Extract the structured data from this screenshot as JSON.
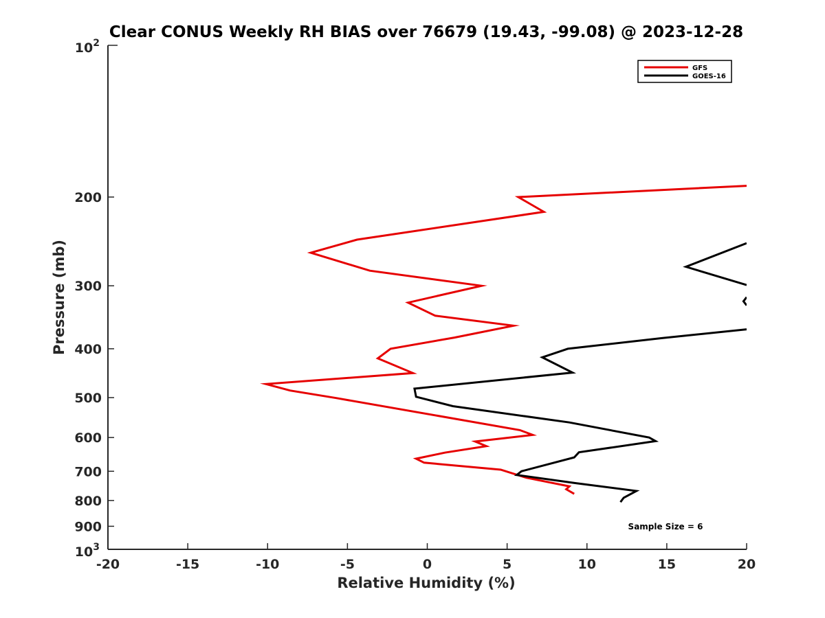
{
  "chart_data": {
    "type": "line",
    "title": "Clear CONUS Weekly RH BIAS over 76679 (19.43, -99.08) @ 2023-12-28",
    "xlabel": "Relative Humidity (%)",
    "ylabel": "Pressure (mb)",
    "xlim": [
      -20,
      20
    ],
    "ylim": [
      100,
      1000
    ],
    "y_scale": "log",
    "y_reversed": true,
    "grid": false,
    "legend_position": "top-right",
    "x_ticks": [
      -20,
      -15,
      -10,
      -5,
      0,
      5,
      10,
      15,
      20
    ],
    "x_tick_labels": [
      "-20",
      "-15",
      "-10",
      "-5",
      "0",
      "5",
      "10",
      "15",
      "20"
    ],
    "y_ticks": [
      200,
      300,
      400,
      500,
      600,
      700,
      800,
      900
    ],
    "y_tick_labels": [
      "200",
      "300",
      "400",
      "500",
      "600",
      "700",
      "800",
      "900"
    ],
    "y_decade_labels": [
      {
        "value": 100,
        "base": "10",
        "exp": "2"
      },
      {
        "value": 1000,
        "base": "10",
        "exp": "3"
      }
    ],
    "series": [
      {
        "name": "GFS",
        "color": "#e60000",
        "x": [
          20,
          5.7,
          7.3,
          -4.4,
          -7.3,
          -3.6,
          3.4,
          -1.2,
          0.5,
          5.4,
          1.7,
          -2.3,
          -3.1,
          -0.9,
          -10.1,
          -8.6,
          -5.7,
          5.8,
          6.6,
          3.0,
          3.7,
          1.1,
          -0.7,
          -0.2,
          4.6,
          6.2,
          8.9,
          8.7,
          9.2
        ],
        "y": [
          190,
          200,
          214,
          243,
          258,
          280,
          300,
          324,
          344,
          360,
          380,
          400,
          418,
          447,
          470,
          484,
          501,
          580,
          593,
          611,
          624,
          643,
          661,
          673,
          695,
          721,
          750,
          760,
          776
        ]
      },
      {
        "name": "GOES-16",
        "color": "#000000",
        "segments": [
          {
            "x": [
              20,
              16.2,
              20
            ],
            "y": [
              247,
              275,
              299
            ]
          },
          {
            "x": [
              20,
              19.8,
              20
            ],
            "y": [
              316,
              322,
              328
            ]
          },
          {
            "x": [
              20,
              14.7,
              8.8,
              7.2,
              9.1,
              -0.8,
              -0.7,
              1.6,
              8.9,
              13.9,
              14.3,
              9.5,
              9.2,
              5.9,
              5.6,
              9.3,
              13.1,
              12.3,
              12.1
            ],
            "y": [
              366,
              381,
              400,
              416,
              446,
              480,
              498,
              520,
              560,
              600,
              610,
              642,
              657,
              700,
              712,
              739,
              766,
              790,
              806
            ]
          }
        ]
      }
    ],
    "annotations": [
      {
        "text": "Sample Size = 6",
        "position": "bottom-right"
      }
    ]
  }
}
